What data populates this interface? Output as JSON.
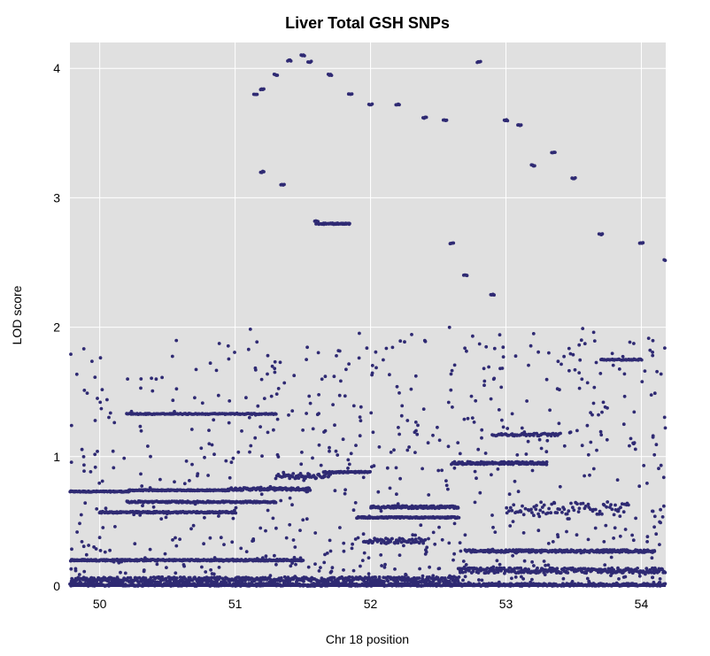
{
  "chart_data": {
    "type": "scatter",
    "title": "Liver Total GSH SNPs",
    "xlabel": "Chr 18 position",
    "ylabel": "LOD score",
    "xlim": [
      49.78,
      54.18
    ],
    "ylim": [
      0,
      4.2
    ],
    "x_ticks": [
      50,
      51,
      52,
      53,
      54
    ],
    "y_ticks": [
      0,
      1,
      2,
      3,
      4
    ],
    "grid": true,
    "legend": "none",
    "colors": {
      "points": "#2f2a73",
      "panel": "#e0e0e0",
      "grid": "#ffffff"
    },
    "peak_points": [
      [
        51.15,
        3.8
      ],
      [
        51.2,
        3.84
      ],
      [
        51.3,
        3.95
      ],
      [
        51.4,
        4.06
      ],
      [
        51.5,
        4.1
      ],
      [
        51.55,
        4.05
      ],
      [
        51.7,
        3.95
      ],
      [
        51.85,
        3.8
      ],
      [
        52.0,
        3.72
      ],
      [
        52.2,
        3.72
      ],
      [
        52.4,
        3.62
      ],
      [
        52.55,
        3.6
      ],
      [
        52.8,
        4.05
      ],
      [
        53.0,
        3.6
      ],
      [
        53.1,
        3.56
      ],
      [
        53.2,
        3.25
      ],
      [
        53.35,
        3.35
      ],
      [
        53.5,
        3.15
      ],
      [
        51.2,
        3.2
      ],
      [
        51.35,
        3.1
      ],
      [
        51.6,
        2.82
      ],
      [
        51.75,
        2.8
      ],
      [
        52.6,
        2.65
      ],
      [
        52.7,
        2.4
      ],
      [
        52.9,
        2.25
      ],
      [
        53.7,
        2.72
      ],
      [
        54.0,
        2.65
      ],
      [
        54.18,
        2.52
      ]
    ],
    "series": [
      {
        "y": 0.73,
        "x_start": 49.78,
        "x_end": 50.22,
        "spread": 0.004,
        "count": 90
      },
      {
        "y": 0.74,
        "x_start": 50.22,
        "x_end": 50.95,
        "spread": 0.004,
        "count": 140
      },
      {
        "y": 0.75,
        "x_start": 50.95,
        "x_end": 51.55,
        "spread": 0.01,
        "count": 120
      },
      {
        "y": 0.2,
        "x_start": 49.78,
        "x_end": 51.5,
        "spread": 0.006,
        "count": 330
      },
      {
        "y": 0.05,
        "x_start": 49.78,
        "x_end": 52.65,
        "spread": 0.02,
        "count": 500
      },
      {
        "y": 0.01,
        "x_start": 49.78,
        "x_end": 54.18,
        "spread": 0.01,
        "count": 600
      },
      {
        "y": 0.57,
        "x_start": 50.0,
        "x_end": 51.0,
        "spread": 0.006,
        "count": 180
      },
      {
        "y": 0.65,
        "x_start": 50.2,
        "x_end": 51.3,
        "spread": 0.006,
        "count": 200
      },
      {
        "y": 1.33,
        "x_start": 50.2,
        "x_end": 51.3,
        "spread": 0.004,
        "count": 150
      },
      {
        "y": 0.88,
        "x_start": 51.65,
        "x_end": 52.0,
        "spread": 0.005,
        "count": 70
      },
      {
        "y": 0.53,
        "x_start": 51.9,
        "x_end": 52.65,
        "spread": 0.005,
        "count": 150
      },
      {
        "y": 0.61,
        "x_start": 52.0,
        "x_end": 52.65,
        "spread": 0.01,
        "count": 120
      },
      {
        "y": 0.95,
        "x_start": 52.6,
        "x_end": 53.3,
        "spread": 0.01,
        "count": 140
      },
      {
        "y": 0.27,
        "x_start": 52.7,
        "x_end": 54.1,
        "spread": 0.01,
        "count": 260
      },
      {
        "y": 0.12,
        "x_start": 52.65,
        "x_end": 54.18,
        "spread": 0.02,
        "count": 260
      },
      {
        "y": 1.17,
        "x_start": 52.9,
        "x_end": 53.4,
        "spread": 0.01,
        "count": 60
      },
      {
        "y": 1.75,
        "x_start": 53.7,
        "x_end": 54.0,
        "spread": 0.005,
        "count": 40
      },
      {
        "y": 2.8,
        "x_start": 51.6,
        "x_end": 51.85,
        "spread": 0.005,
        "count": 40
      },
      {
        "y": 0.35,
        "x_start": 51.95,
        "x_end": 52.4,
        "spread": 0.02,
        "count": 60
      },
      {
        "y": 0.85,
        "x_start": 51.3,
        "x_end": 51.7,
        "spread": 0.02,
        "count": 50
      },
      {
        "y": 0.6,
        "x_start": 53.0,
        "x_end": 53.9,
        "spread": 0.05,
        "count": 80
      }
    ]
  }
}
